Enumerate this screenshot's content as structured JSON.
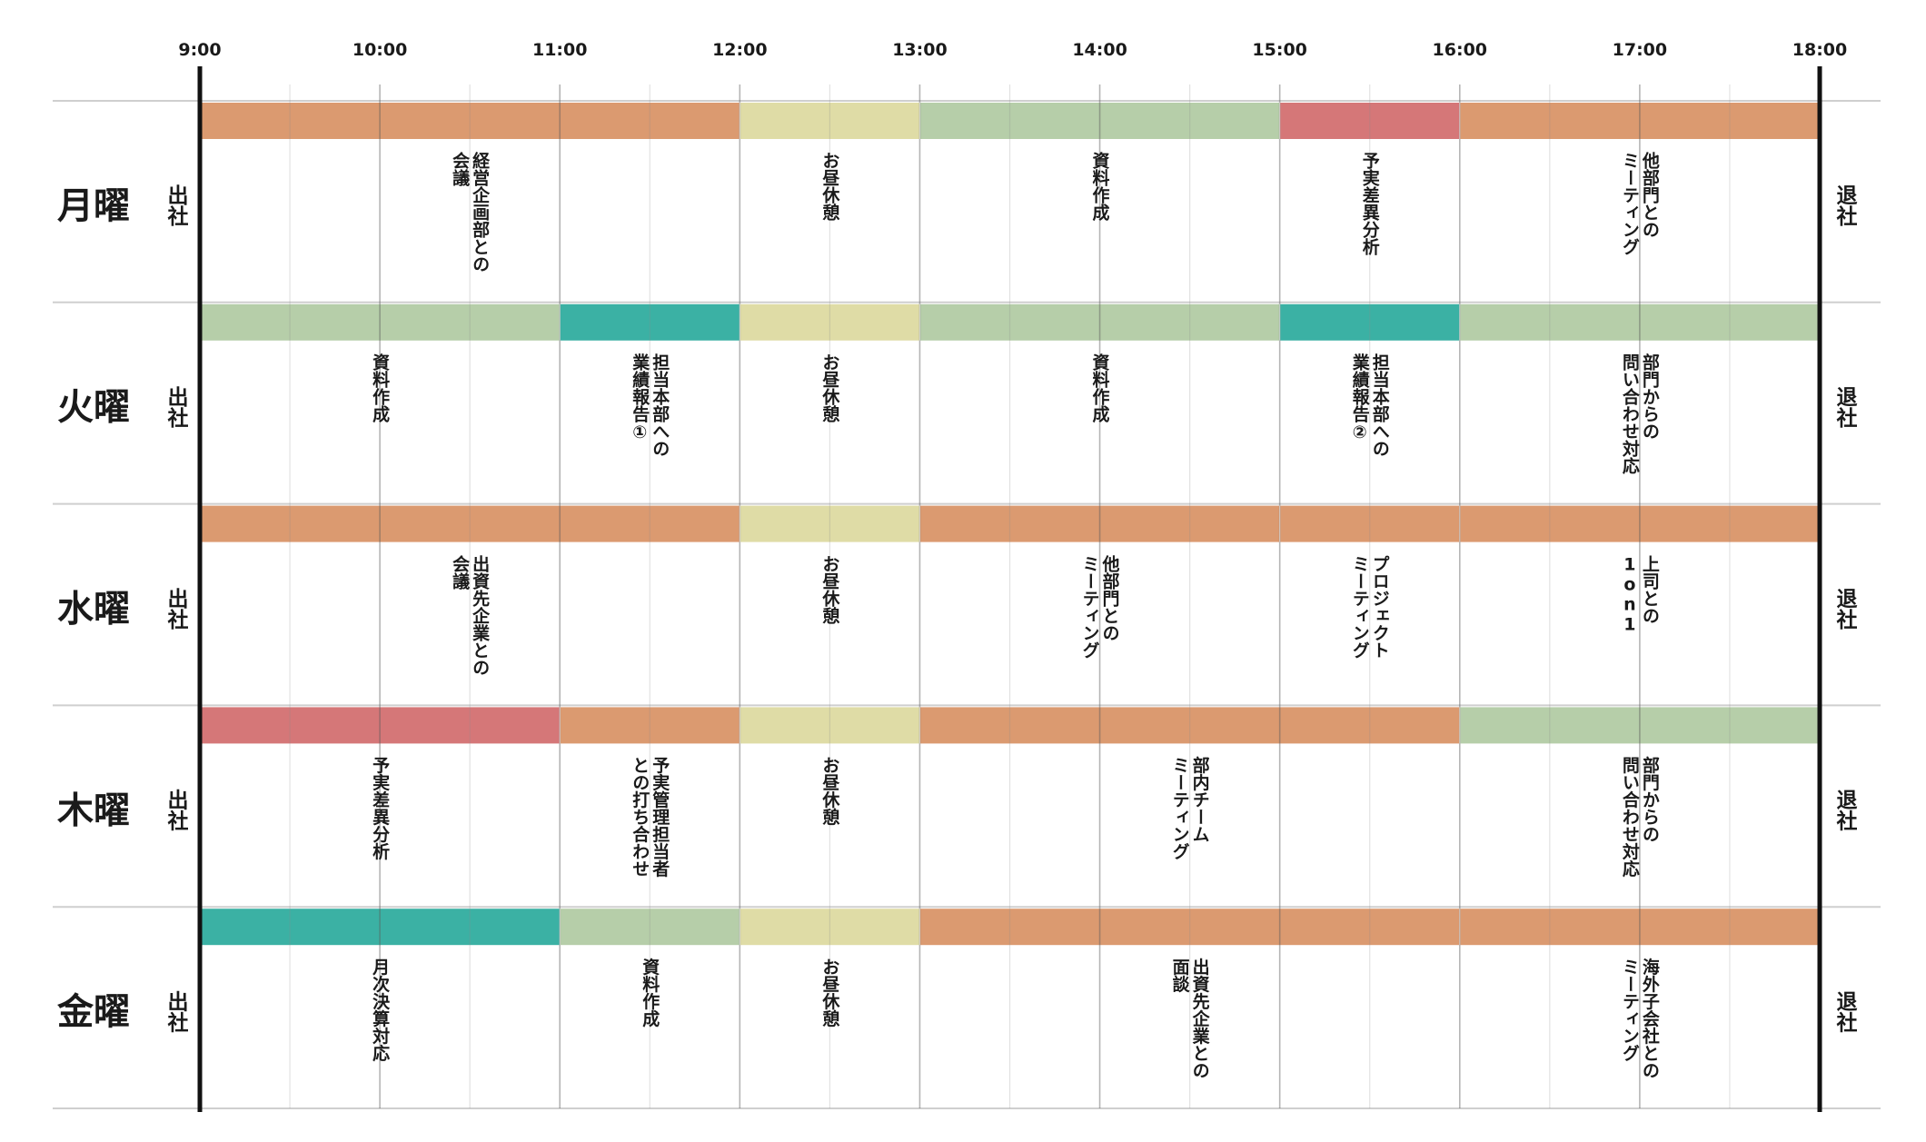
{
  "schedule": {
    "times": [
      "9:00",
      "10:00",
      "11:00",
      "12:00",
      "13:00",
      "14:00",
      "15:00",
      "16:00",
      "17:00",
      "18:00"
    ],
    "start_hour": 9,
    "end_hour": 18,
    "arrive_label": "出社",
    "leave_label": "退社",
    "category_colors": {
      "meeting": "#db9a70",
      "lunch": "#dfdca6",
      "work": "#b6cea9",
      "analysis": "#d57778",
      "report": "#3bb1a4"
    },
    "days": [
      {
        "label": "月曜",
        "tasks": [
          {
            "start": 9,
            "end": 12,
            "category": "meeting",
            "lines": [
              "経営企画部との",
              "会議"
            ]
          },
          {
            "start": 12,
            "end": 13,
            "category": "lunch",
            "lines": [
              "お昼休憩"
            ]
          },
          {
            "start": 13,
            "end": 15,
            "category": "work",
            "lines": [
              "資料作成"
            ]
          },
          {
            "start": 15,
            "end": 16,
            "category": "analysis",
            "lines": [
              "予実差異分析"
            ]
          },
          {
            "start": 16,
            "end": 18,
            "category": "meeting",
            "lines": [
              "他部門との",
              "ミーティング"
            ]
          }
        ]
      },
      {
        "label": "火曜",
        "tasks": [
          {
            "start": 9,
            "end": 11,
            "category": "work",
            "lines": [
              "資料作成"
            ]
          },
          {
            "start": 11,
            "end": 12,
            "category": "report",
            "lines": [
              "担当本部への",
              "業績報告①"
            ]
          },
          {
            "start": 12,
            "end": 13,
            "category": "lunch",
            "lines": [
              "お昼休憩"
            ]
          },
          {
            "start": 13,
            "end": 15,
            "category": "work",
            "lines": [
              "資料作成"
            ]
          },
          {
            "start": 15,
            "end": 16,
            "category": "report",
            "lines": [
              "担当本部への",
              "業績報告②"
            ]
          },
          {
            "start": 16,
            "end": 18,
            "category": "work",
            "lines": [
              "部門からの",
              "問い合わせ対応"
            ]
          }
        ]
      },
      {
        "label": "水曜",
        "tasks": [
          {
            "start": 9,
            "end": 12,
            "category": "meeting",
            "lines": [
              "出資先企業との",
              "会議"
            ]
          },
          {
            "start": 12,
            "end": 13,
            "category": "lunch",
            "lines": [
              "お昼休憩"
            ]
          },
          {
            "start": 13,
            "end": 15,
            "category": "meeting",
            "lines": [
              "他部門との",
              "ミーティング"
            ]
          },
          {
            "start": 15,
            "end": 16,
            "category": "meeting",
            "lines": [
              "プロジェクト",
              "ミーティング"
            ]
          },
          {
            "start": 16,
            "end": 18,
            "category": "meeting",
            "lines": [
              "上司との",
              "1on1"
            ]
          }
        ]
      },
      {
        "label": "木曜",
        "tasks": [
          {
            "start": 9,
            "end": 11,
            "category": "analysis",
            "lines": [
              "予実差異分析"
            ]
          },
          {
            "start": 11,
            "end": 12,
            "category": "meeting",
            "lines": [
              "予実管理担当者",
              "との打ち合わせ"
            ]
          },
          {
            "start": 12,
            "end": 13,
            "category": "lunch",
            "lines": [
              "お昼休憩"
            ]
          },
          {
            "start": 13,
            "end": 16,
            "category": "meeting",
            "lines": [
              "部内チーム",
              "ミーティング"
            ]
          },
          {
            "start": 16,
            "end": 18,
            "category": "work",
            "lines": [
              "部門からの",
              "問い合わせ対応"
            ]
          }
        ]
      },
      {
        "label": "金曜",
        "tasks": [
          {
            "start": 9,
            "end": 11,
            "category": "report",
            "lines": [
              "月次決算対応"
            ]
          },
          {
            "start": 11,
            "end": 12,
            "category": "work",
            "lines": [
              "資料作成"
            ]
          },
          {
            "start": 12,
            "end": 13,
            "category": "lunch",
            "lines": [
              "お昼休憩"
            ]
          },
          {
            "start": 13,
            "end": 16,
            "category": "meeting",
            "lines": [
              "出資先企業との",
              "面談"
            ]
          },
          {
            "start": 16,
            "end": 18,
            "category": "meeting",
            "lines": [
              "海外子会社との",
              "ミーティング"
            ]
          }
        ]
      }
    ]
  }
}
